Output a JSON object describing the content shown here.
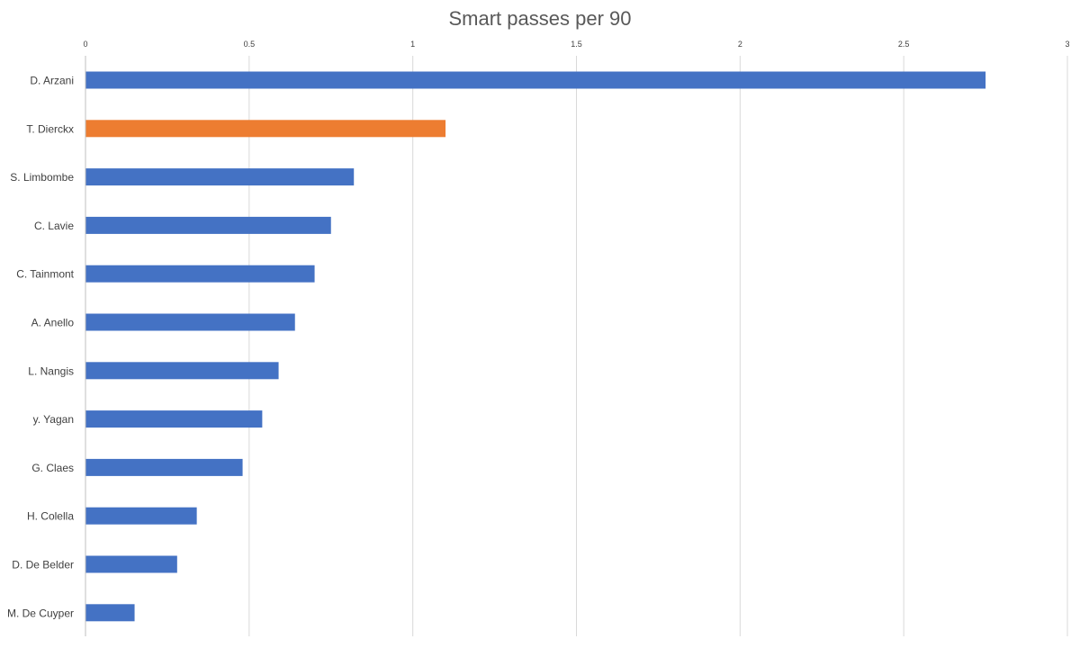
{
  "chart_data": {
    "type": "bar",
    "orientation": "horizontal",
    "title": "Smart passes per 90",
    "xlabel": "",
    "ylabel": "",
    "xlim": [
      0,
      3
    ],
    "x_ticks": [
      "0",
      "0.5",
      "1",
      "1.5",
      "2",
      "2.5",
      "3"
    ],
    "x_tick_values": [
      0,
      0.5,
      1,
      1.5,
      2,
      2.5,
      3
    ],
    "x_axis_position": "top",
    "grid": true,
    "legend": "none",
    "categories": [
      "D. Arzani",
      "T. Dierckx",
      "S. Limbombe",
      "C. Lavie",
      "C. Tainmont",
      "A. Anello",
      "L. Nangis",
      "y. Yagan",
      "G. Claes",
      "H. Colella",
      "D. De Belder",
      "M. De Cuyper"
    ],
    "values": [
      2.75,
      1.1,
      0.82,
      0.75,
      0.7,
      0.64,
      0.59,
      0.54,
      0.48,
      0.34,
      0.28,
      0.15
    ],
    "highlight_category": "T. Dierckx",
    "colors": {
      "default": "#4472C4",
      "highlight": "#ED7D31",
      "grid": "#D9D9D9",
      "axis": "#BFBFBF",
      "text": "#404040",
      "title": "#595959"
    }
  }
}
